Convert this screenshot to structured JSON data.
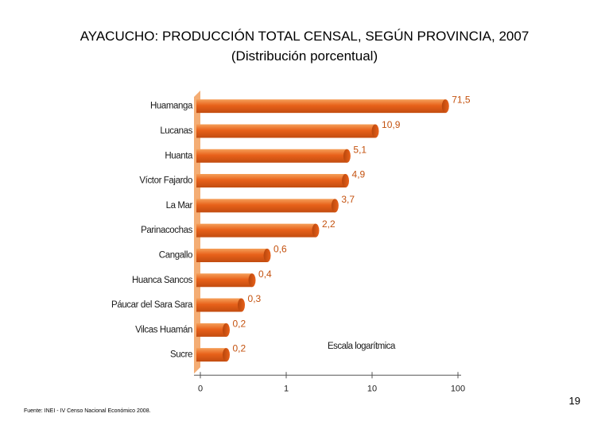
{
  "header": {
    "title": "AYACUCHO: PRODUCCIÓN TOTAL CENSAL, SEGÚN PROVINCIA, 2007",
    "subtitle": "(Distribución porcentual)"
  },
  "footer": {
    "page_number": "19",
    "source": "Fuente: INEI - IV Censo Nacional Económico 2008."
  },
  "colors": {
    "bar": "#e8611a",
    "bar_light": "#f5a05a",
    "bar_dark": "#b8460c",
    "floor": "#f4ad74",
    "value_label": "#c4520f"
  },
  "chart_data": {
    "type": "bar",
    "orientation": "horizontal",
    "scale": "log",
    "annotation": "Escala logarítmica",
    "categories": [
      "Huamanga",
      "Lucanas",
      "Huanta",
      "Víctor Fajardo",
      "La Mar",
      "Parinacochas",
      "Cangallo",
      "Huanca Sancos",
      "Páucar del Sara Sara",
      "Vilcas Huamán",
      "Sucre"
    ],
    "values": [
      71.5,
      10.9,
      5.1,
      4.9,
      3.7,
      2.2,
      0.6,
      0.4,
      0.3,
      0.2,
      0.2
    ],
    "value_labels": [
      "71,5",
      "10,9",
      "5,1",
      "4,9",
      "3,7",
      "2,2",
      "0,6",
      "0,4",
      "0,3",
      "0,2",
      "0,2"
    ],
    "x_ticks": [
      "0",
      "1",
      "10",
      "100"
    ],
    "grid": false
  }
}
